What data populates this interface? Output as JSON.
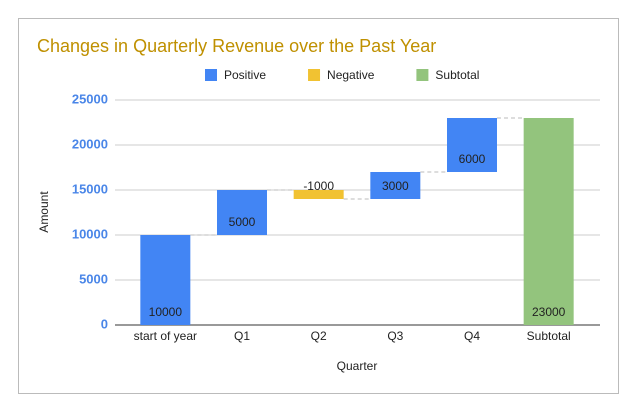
{
  "chart_data": {
    "type": "waterfall",
    "title": "Changes in Quarterly Revenue over the Past Year",
    "x_label": "Quarter",
    "y_label": "Amount",
    "categories": [
      "start of year",
      "Q1",
      "Q2",
      "Q3",
      "Q4",
      "Subtotal"
    ],
    "series": [
      {
        "name": "Positive",
        "color": "#4285f4",
        "values": [
          10000,
          5000,
          null,
          3000,
          6000,
          null
        ]
      },
      {
        "name": "Negative",
        "color": "#f1c232",
        "values": [
          null,
          null,
          -1000,
          null,
          null,
          null
        ]
      },
      {
        "name": "Subtotal",
        "color": "#93c47d",
        "values": [
          null,
          null,
          null,
          null,
          null,
          23000
        ]
      }
    ],
    "ylim": [
      0,
      25000
    ],
    "yticks": [
      0,
      5000,
      10000,
      15000,
      20000,
      25000
    ],
    "grid": true
  }
}
